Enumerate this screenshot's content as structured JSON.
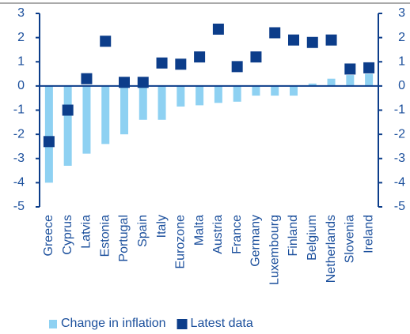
{
  "chart_data": {
    "type": "bar",
    "categories": [
      "Greece",
      "Cyprus",
      "Latvia",
      "Estonia",
      "Portugal",
      "Spain",
      "Italy",
      "Eurozone",
      "Malta",
      "Austria",
      "France",
      "Germany",
      "Luxembourg",
      "Finland",
      "Belgium",
      "Netherlands",
      "Slovenia",
      "Ireland"
    ],
    "series": [
      {
        "name": "Change in inflation",
        "type": "bar",
        "color": "#8ed1f2",
        "values": [
          -4.0,
          -3.3,
          -2.8,
          -2.4,
          -2.0,
          -1.4,
          -1.4,
          -0.85,
          -0.8,
          -0.7,
          -0.65,
          -0.4,
          -0.4,
          -0.4,
          0.1,
          0.3,
          0.45,
          0.5
        ]
      },
      {
        "name": "Latest data",
        "type": "square",
        "color": "#0c3d8a",
        "values": [
          -2.3,
          -1.0,
          0.3,
          1.85,
          0.15,
          0.15,
          0.95,
          0.9,
          1.2,
          2.35,
          0.8,
          1.2,
          2.2,
          1.9,
          1.8,
          1.9,
          0.7,
          0.75
        ]
      }
    ],
    "ylim": [
      -5,
      3
    ],
    "yticks": [
      -5,
      -4,
      -3,
      -2,
      -1,
      0,
      1,
      2,
      3
    ],
    "y2lim": [
      -5,
      3
    ],
    "y2ticks": [
      -5,
      -4,
      -3,
      -2,
      -1,
      0,
      1,
      2,
      3
    ],
    "legend": "bottom"
  }
}
